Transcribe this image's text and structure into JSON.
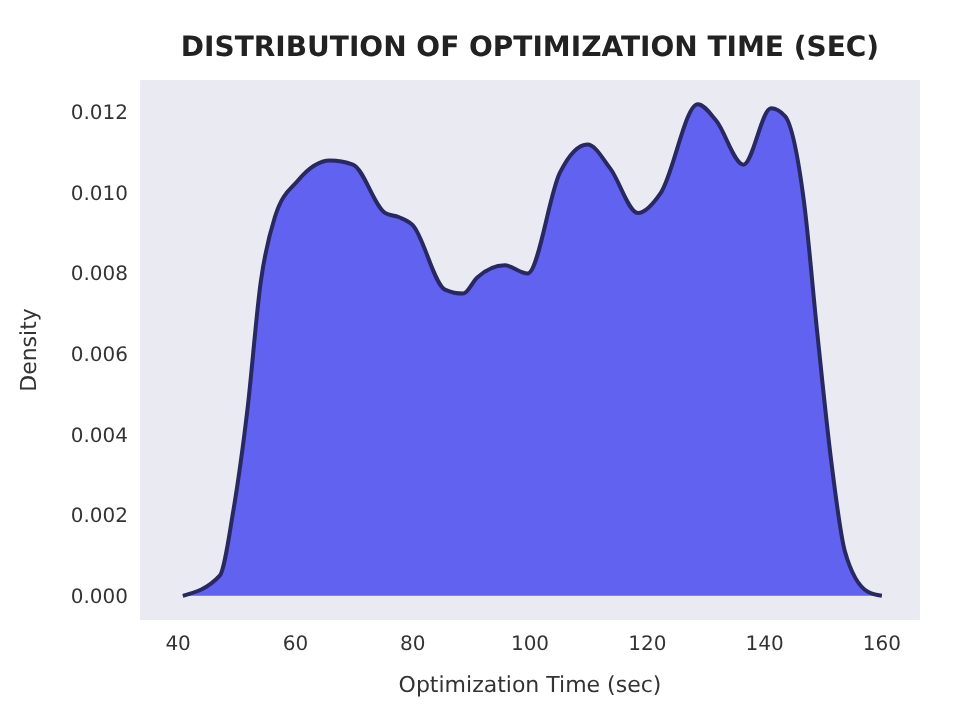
{
  "chart_data": {
    "type": "area",
    "title": "DISTRIBUTION OF OPTIMIZATION TIME (SEC)",
    "xlabel": "Optimization Time (sec)",
    "ylabel": "Density",
    "series": [
      {
        "color": "#6262f0",
        "x": [
          40.8,
          47.1,
          49.4,
          51.8,
          54.1,
          56.5,
          60.4,
          65.9,
          69.8,
          75.3,
          77.6,
          80,
          85.5,
          88.6,
          91,
          95.7,
          99.6,
          105.1,
          109.8,
          113.7,
          118.4,
          122.3,
          128.6,
          131.7,
          136.4,
          141.1,
          143.5,
          146.7,
          149,
          151.4,
          153.7,
          157.6,
          160
        ],
        "values": [
          0,
          0.0005,
          0.0021,
          0.0046,
          0.0078,
          0.0094,
          0.0103,
          0.0108,
          0.0107,
          0.0095,
          0.0094,
          0.0092,
          0.0076,
          0.0075,
          0.0079,
          0.0082,
          0.008,
          0.0105,
          0.0112,
          0.0106,
          0.0095,
          0.01,
          0.0122,
          0.0118,
          0.0107,
          0.0121,
          0.0119,
          0.0098,
          0.0065,
          0.0033,
          0.0011,
          0.0001,
          0
        ]
      }
    ],
    "xlim": [
      33.5,
      166.5
    ],
    "xticks": [
      40,
      60,
      80,
      100,
      120,
      140,
      160
    ],
    "ylim": [
      -0.0006,
      0.0128
    ],
    "yticks": [
      {
        "value": 0,
        "label": "0.000"
      },
      {
        "value": 0.002,
        "label": "0.002"
      },
      {
        "value": 0.004,
        "label": "0.004"
      },
      {
        "value": 0.006,
        "label": "0.006"
      },
      {
        "value": 0.008,
        "label": "0.008"
      },
      {
        "value": 0.01,
        "label": "0.010"
      },
      {
        "value": 0.012,
        "label": "0.012"
      }
    ],
    "grid": false
  }
}
